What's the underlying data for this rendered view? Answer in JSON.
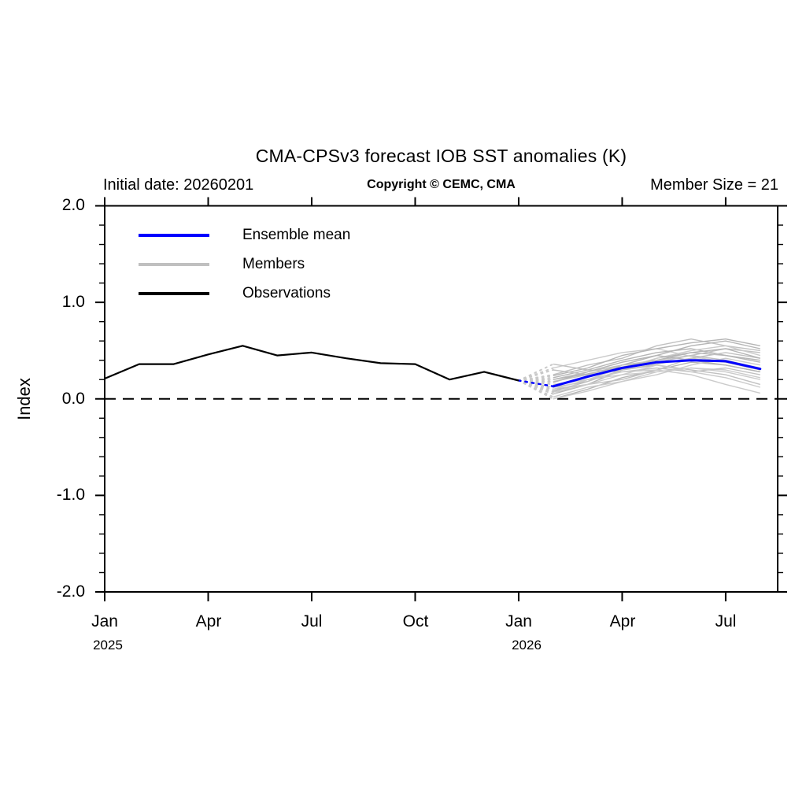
{
  "page": {
    "background": "#ffffff"
  },
  "header": {
    "title": "CMA-CPSv3 forecast IOB SST anomalies (K)",
    "initial_date": "Initial date: 20260201",
    "copyright": "Copyright © CEMC, CMA",
    "member_size": "Member Size = 21"
  },
  "legend": {
    "items": [
      {
        "label": "Ensemble mean",
        "color": "#0000ff"
      },
      {
        "label": "Members",
        "color": "#c0c0c0"
      },
      {
        "label": "Observations",
        "color": "#000000"
      }
    ]
  },
  "axes": {
    "ylabel": "Index",
    "ylim": [
      -2.0,
      2.0
    ],
    "y_minor_step": 0.2,
    "y_ticks": [
      {
        "value": 2.0,
        "label": "2.0"
      },
      {
        "value": 1.0,
        "label": "1.0"
      },
      {
        "value": 0.0,
        "label": "0.0"
      },
      {
        "value": -1.0,
        "label": "-1.0"
      },
      {
        "value": -2.0,
        "label": "-2.0"
      }
    ],
    "x_ticks": [
      {
        "month_index": 0,
        "label": "Jan",
        "year": "2025"
      },
      {
        "month_index": 3,
        "label": "Apr",
        "year": ""
      },
      {
        "month_index": 6,
        "label": "Jul",
        "year": ""
      },
      {
        "month_index": 9,
        "label": "Oct",
        "year": ""
      },
      {
        "month_index": 12,
        "label": "Jan",
        "year": "2026"
      },
      {
        "month_index": 15,
        "label": "Apr",
        "year": ""
      },
      {
        "month_index": 18,
        "label": "Jul",
        "year": ""
      }
    ]
  },
  "chart_data": {
    "type": "line",
    "title": "CMA-CPSv3 forecast IOB SST anomalies (K)",
    "xlabel": "",
    "ylabel": "Index",
    "ylim": [
      -2.0,
      2.0
    ],
    "x_months": [
      "2025-01",
      "2025-02",
      "2025-03",
      "2025-04",
      "2025-05",
      "2025-06",
      "2025-07",
      "2025-08",
      "2025-09",
      "2025-10",
      "2025-11",
      "2025-12",
      "2026-01",
      "2026-02",
      "2026-03",
      "2026-04",
      "2026-05",
      "2026-06",
      "2026-07",
      "2026-08"
    ],
    "zero_line": {
      "value": 0.0,
      "style": "dashed",
      "color": "#000000"
    },
    "connector_style": "dotted",
    "observations": {
      "name": "Observations",
      "color": "#000000",
      "start_month_index": 0,
      "values": [
        0.21,
        0.36,
        0.36,
        0.46,
        0.55,
        0.45,
        0.48,
        0.42,
        0.37,
        0.36,
        0.2,
        0.28,
        0.19
      ]
    },
    "ensemble_mean": {
      "name": "Ensemble mean",
      "color": "#0000ff",
      "start_month_index": 13,
      "values": [
        0.13,
        0.23,
        0.32,
        0.38,
        0.4,
        0.39,
        0.31
      ]
    },
    "members": {
      "name": "Members",
      "color": "#c0c0c0",
      "count": 21,
      "start_month_index": 13,
      "series": [
        [
          0.05,
          0.15,
          0.3,
          0.42,
          0.48,
          0.45,
          0.38
        ],
        [
          0.2,
          0.28,
          0.35,
          0.4,
          0.45,
          0.52,
          0.48
        ],
        [
          0.32,
          0.4,
          0.48,
          0.52,
          0.44,
          0.38,
          0.3
        ],
        [
          0.0,
          0.1,
          0.22,
          0.3,
          0.38,
          0.35,
          0.28
        ],
        [
          0.25,
          0.35,
          0.42,
          0.55,
          0.62,
          0.55,
          0.5
        ],
        [
          0.15,
          0.2,
          0.25,
          0.28,
          0.32,
          0.3,
          0.22
        ],
        [
          0.08,
          0.18,
          0.35,
          0.45,
          0.55,
          0.6,
          0.52
        ],
        [
          0.18,
          0.25,
          0.3,
          0.35,
          0.3,
          0.25,
          0.15
        ],
        [
          0.02,
          0.12,
          0.18,
          0.25,
          0.35,
          0.42,
          0.35
        ],
        [
          0.22,
          0.3,
          0.4,
          0.48,
          0.52,
          0.45,
          0.4
        ],
        [
          0.36,
          0.3,
          0.28,
          0.32,
          0.28,
          0.32,
          0.25
        ],
        [
          0.05,
          0.2,
          0.32,
          0.42,
          0.5,
          0.55,
          0.45
        ],
        [
          0.17,
          0.28,
          0.38,
          0.45,
          0.4,
          0.35,
          0.28
        ],
        [
          0.1,
          0.15,
          0.2,
          0.3,
          0.42,
          0.48,
          0.42
        ],
        [
          0.0,
          0.08,
          0.18,
          0.28,
          0.32,
          0.28,
          0.2
        ],
        [
          0.24,
          0.32,
          0.45,
          0.52,
          0.58,
          0.62,
          0.55
        ],
        [
          0.3,
          0.25,
          0.35,
          0.38,
          0.45,
          0.4,
          0.32
        ],
        [
          0.07,
          0.15,
          0.25,
          0.35,
          0.28,
          0.22,
          0.12
        ],
        [
          0.2,
          0.26,
          0.33,
          0.4,
          0.48,
          0.52,
          0.42
        ],
        [
          0.12,
          0.18,
          0.3,
          0.36,
          0.42,
          0.38,
          0.3
        ],
        [
          0.1,
          0.2,
          0.28,
          0.3,
          0.25,
          0.15,
          0.06
        ]
      ]
    }
  }
}
